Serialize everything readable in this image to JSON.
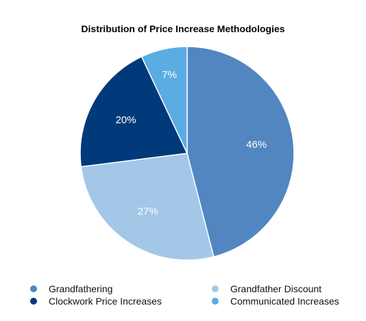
{
  "chart_data": {
    "type": "pie",
    "title": "Distribution of Price Increase Methodologies",
    "slices": [
      {
        "name": "Grandfathering",
        "value": 46,
        "label": "46%",
        "color": "#5286c1",
        "label_color": "#ffffff"
      },
      {
        "name": "Grandfather Discount",
        "value": 27,
        "label": "27%",
        "color": "#a3c7e7",
        "label_color": "#ffffff"
      },
      {
        "name": "Clockwork Price Increases",
        "value": 20,
        "label": "20%",
        "color": "#003a7a",
        "label_color": "#ffffff"
      },
      {
        "name": "Communicated Increases",
        "value": 7,
        "label": "7%",
        "color": "#5aace3",
        "label_color": "#ffffff"
      }
    ],
    "legend": {
      "placement": "bottom",
      "items": [
        {
          "label": "Grandfathering",
          "color": "#5286c1"
        },
        {
          "label": "Grandfather Discount",
          "color": "#a3c7e7"
        },
        {
          "label": "Clockwork Price Increases",
          "color": "#003a7a"
        },
        {
          "label": "Communicated Increases",
          "color": "#5aace3"
        }
      ]
    }
  }
}
